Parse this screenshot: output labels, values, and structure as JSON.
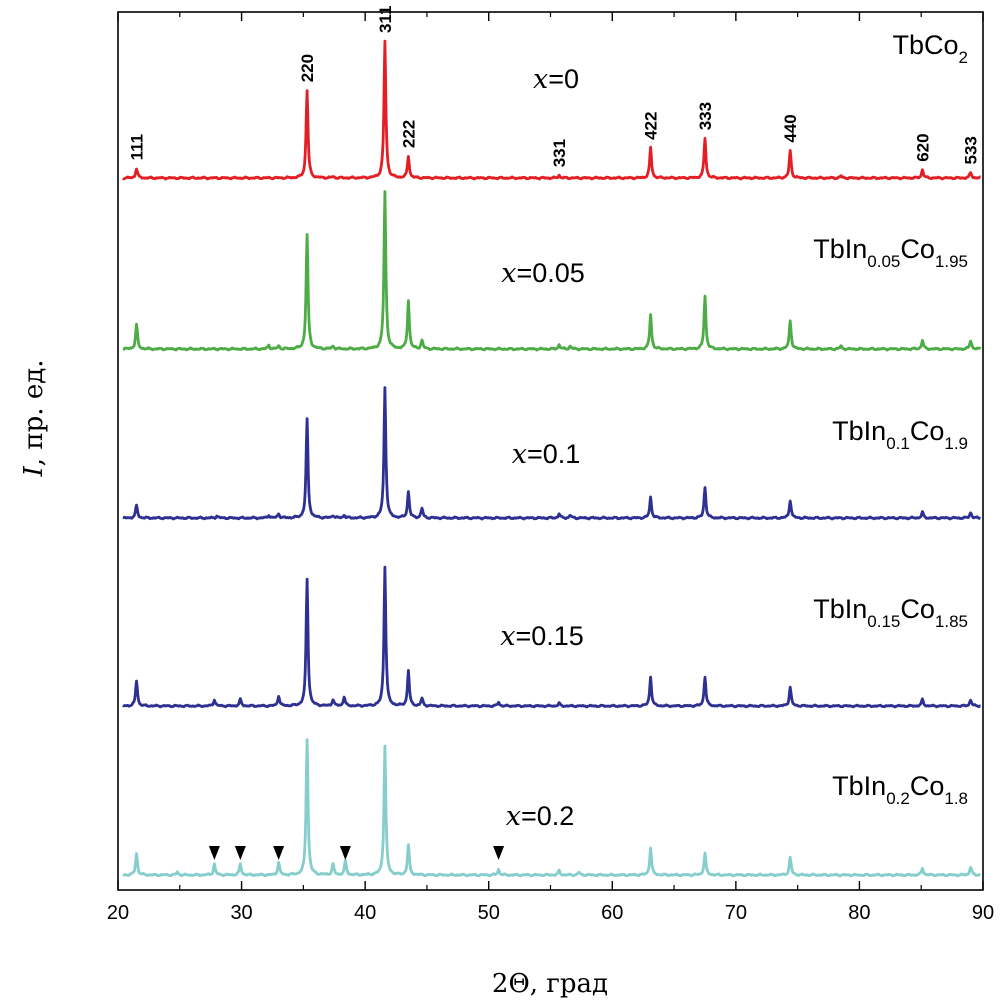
{
  "chart_data": {
    "type": "line",
    "title": "",
    "xlabel": "2Θ, град",
    "ylabel_var": "I",
    "ylabel_rest": ", пр. ед.",
    "xlim": [
      20,
      90
    ],
    "x_ticks": [
      20,
      30,
      40,
      50,
      60,
      70,
      80,
      90
    ],
    "grid": false,
    "hkl_labels": [
      {
        "label": "111",
        "x": 21.5
      },
      {
        "label": "220",
        "x": 35.3
      },
      {
        "label": "311",
        "x": 41.6
      },
      {
        "label": "222",
        "x": 43.5
      },
      {
        "label": "331",
        "x": 55.7
      },
      {
        "label": "422",
        "x": 63.1
      },
      {
        "label": "333",
        "x": 67.5
      },
      {
        "label": "440",
        "x": 74.4
      },
      {
        "label": "620",
        "x": 85.1
      },
      {
        "label": "533",
        "x": 89.0
      }
    ],
    "impurity_markers": [
      {
        "series": 4,
        "x": 27.8
      },
      {
        "series": 4,
        "x": 29.9
      },
      {
        "series": 4,
        "x": 33.0
      },
      {
        "series": 4,
        "x": 38.4
      },
      {
        "series": 4,
        "x": 50.8
      }
    ],
    "series": [
      {
        "name": "TbCo2",
        "comp": [
          {
            "t": "TbCo"
          },
          {
            "t": "2",
            "sub": true
          }
        ],
        "x_var": "x",
        "x_val": "=0",
        "color": "#e31e24",
        "baseline": 0,
        "peaks": [
          [
            21.5,
            7
          ],
          [
            35.3,
            64
          ],
          [
            37.4,
            1
          ],
          [
            41.6,
            100
          ],
          [
            43.5,
            16
          ],
          [
            55.7,
            2
          ],
          [
            63.1,
            22
          ],
          [
            67.5,
            29
          ],
          [
            74.4,
            20
          ],
          [
            78.5,
            1.5
          ],
          [
            85.1,
            6
          ],
          [
            89.0,
            4
          ]
        ]
      },
      {
        "name": "TbIn0.05Co1.95",
        "comp": [
          {
            "t": "TbIn"
          },
          {
            "t": "0.05",
            "sub": true
          },
          {
            "t": "Co"
          },
          {
            "t": "1.95",
            "sub": true
          }
        ],
        "x_var": "x",
        "x_val": "=0.05",
        "color": "#4dac45",
        "baseline": 0,
        "peaks": [
          [
            21.5,
            17
          ],
          [
            32.2,
            2.5
          ],
          [
            33.0,
            2
          ],
          [
            35.3,
            80
          ],
          [
            37.4,
            2
          ],
          [
            41.6,
            110
          ],
          [
            43.5,
            34
          ],
          [
            44.6,
            6
          ],
          [
            55.7,
            3
          ],
          [
            56.6,
            2
          ],
          [
            63.1,
            24
          ],
          [
            67.5,
            37
          ],
          [
            74.4,
            20
          ],
          [
            78.5,
            2
          ],
          [
            85.1,
            6
          ],
          [
            89.0,
            6
          ]
        ]
      },
      {
        "name": "TbIn0.1Co1.9",
        "comp": [
          {
            "t": "TbIn"
          },
          {
            "t": "0.1",
            "sub": true
          },
          {
            "t": "Co"
          },
          {
            "t": "1.9",
            "sub": true
          }
        ],
        "x_var": "x",
        "x_val": "=0.1",
        "color": "#2e3192",
        "baseline": 0,
        "peaks": [
          [
            21.5,
            9
          ],
          [
            28.0,
            1.5
          ],
          [
            32.2,
            2
          ],
          [
            33.0,
            3
          ],
          [
            35.3,
            71
          ],
          [
            37.4,
            2
          ],
          [
            38.3,
            2
          ],
          [
            41.6,
            94
          ],
          [
            43.5,
            19
          ],
          [
            44.6,
            7
          ],
          [
            55.7,
            3
          ],
          [
            56.6,
            2
          ],
          [
            63.1,
            15
          ],
          [
            67.5,
            22
          ],
          [
            74.4,
            13
          ],
          [
            85.1,
            4
          ],
          [
            89.0,
            4
          ]
        ]
      },
      {
        "name": "TbIn0.15Co1.85",
        "comp": [
          {
            "t": "TbIn"
          },
          {
            "t": "0.15",
            "sub": true
          },
          {
            "t": "Co"
          },
          {
            "t": "1.85",
            "sub": true
          }
        ],
        "x_var": "x",
        "x_val": "=0.15",
        "color": "#2e3192",
        "baseline": 0,
        "peaks": [
          [
            21.5,
            20
          ],
          [
            27.8,
            5
          ],
          [
            29.9,
            5
          ],
          [
            33.0,
            8
          ],
          [
            35.3,
            100
          ],
          [
            37.4,
            5
          ],
          [
            38.3,
            7
          ],
          [
            41.6,
            110
          ],
          [
            43.5,
            28
          ],
          [
            44.6,
            6
          ],
          [
            50.8,
            3
          ],
          [
            55.7,
            2
          ],
          [
            63.1,
            23
          ],
          [
            67.5,
            23
          ],
          [
            74.4,
            15
          ],
          [
            85.1,
            5
          ],
          [
            89.0,
            5
          ]
        ]
      },
      {
        "name": "TbIn0.2Co1.8",
        "comp": [
          {
            "t": "TbIn"
          },
          {
            "t": "0.2",
            "sub": true
          },
          {
            "t": "Co"
          },
          {
            "t": "1.8",
            "sub": true
          }
        ],
        "x_var": "x",
        "x_val": "=0.2",
        "color": "#86cecb",
        "baseline": 0,
        "peaks": [
          [
            21.5,
            16
          ],
          [
            24.8,
            2
          ],
          [
            27.8,
            8
          ],
          [
            29.9,
            8
          ],
          [
            33.0,
            9
          ],
          [
            35.3,
            100
          ],
          [
            37.4,
            8
          ],
          [
            38.4,
            10
          ],
          [
            41.6,
            95
          ],
          [
            43.5,
            22
          ],
          [
            50.8,
            4
          ],
          [
            55.7,
            3
          ],
          [
            57.3,
            2
          ],
          [
            63.1,
            20
          ],
          [
            67.5,
            16
          ],
          [
            74.4,
            13
          ],
          [
            85.1,
            5
          ],
          [
            89.0,
            6
          ]
        ]
      }
    ]
  }
}
